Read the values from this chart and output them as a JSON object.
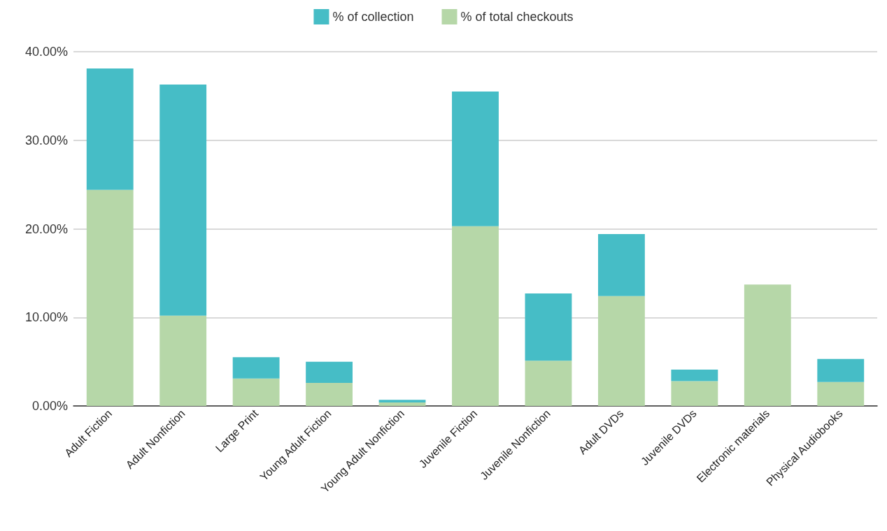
{
  "chart_data": {
    "type": "bar",
    "stacked": true,
    "categories": [
      "Adult Fiction",
      "Adult Nonfiction",
      "Large Print",
      "Young Adult Fiction",
      "Young Adult Nonfiction",
      "Juvenile Fiction",
      "Juvenile Nonfiction",
      "Adult DVDs",
      "Juvenile DVDs",
      "Electronic materials",
      "Physical Audiobooks"
    ],
    "series": [
      {
        "name": "% of total checkouts",
        "color": "#b6d7a8",
        "values": [
          24.4,
          10.2,
          3.1,
          2.6,
          0.4,
          20.3,
          5.1,
          12.4,
          2.8,
          13.7,
          2.7
        ]
      },
      {
        "name": "% of collection",
        "color": "#46bdc6",
        "values": [
          13.7,
          26.1,
          2.4,
          2.4,
          0.3,
          15.2,
          7.6,
          7.0,
          1.3,
          0,
          2.6
        ]
      }
    ],
    "ylim": [
      0,
      40
    ],
    "yticks": [
      {
        "value": 0,
        "label": "0.00%"
      },
      {
        "value": 10,
        "label": "10.00%"
      },
      {
        "value": 20,
        "label": "20.00%"
      },
      {
        "value": 30,
        "label": "30.00%"
      },
      {
        "value": 40,
        "label": "40.00%"
      }
    ],
    "grid": "y",
    "legend": "top"
  }
}
